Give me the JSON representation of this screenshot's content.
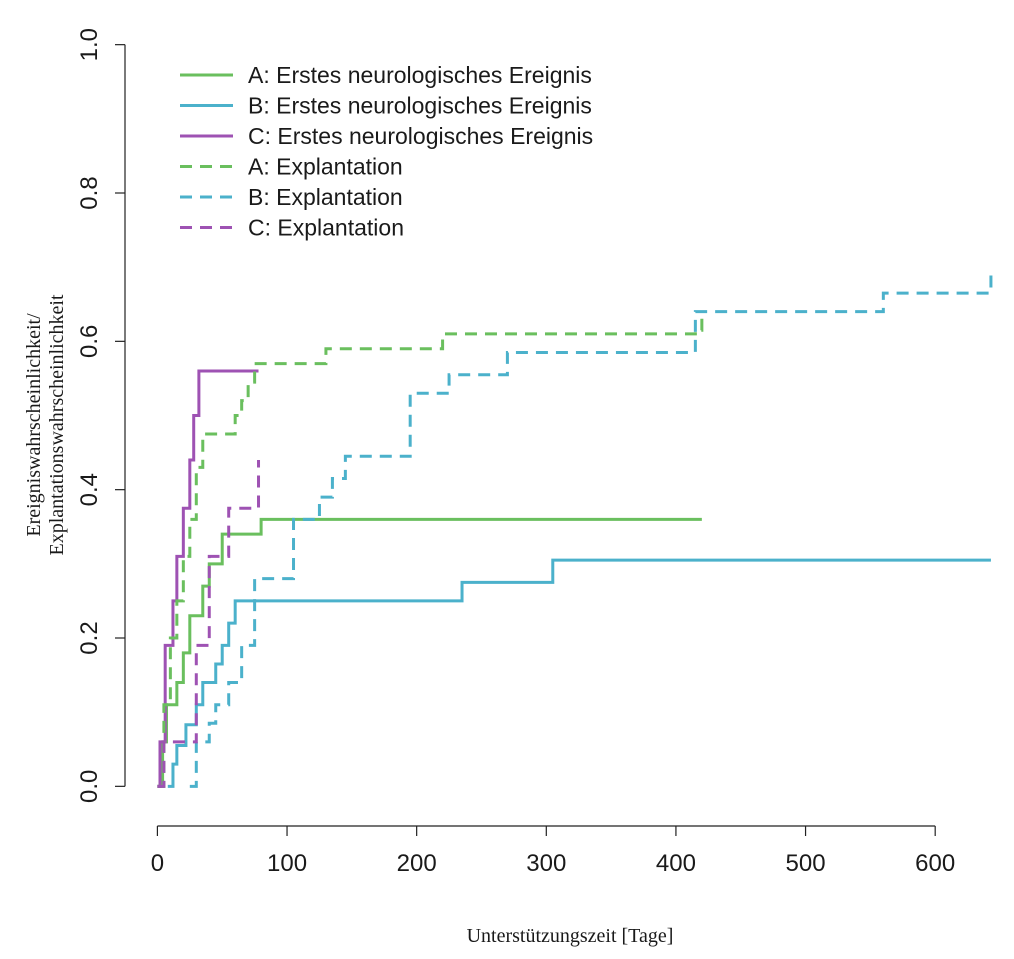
{
  "chart_data": {
    "type": "line",
    "xlabel": "Unterstützungszeit [Tage]",
    "ylabel_lines": [
      "Ereigniswahrscheinlichkeit/",
      "Explantationswahrscheinlichkeit"
    ],
    "xlim": [
      -25,
      650
    ],
    "ylim": [
      -0.04,
      1.04
    ],
    "x_ticks": [
      0,
      100,
      200,
      300,
      400,
      500,
      600
    ],
    "x_tick_labels": [
      "0",
      "100",
      "200",
      "300",
      "400",
      "500",
      "600"
    ],
    "y_ticks": [
      0.0,
      0.2,
      0.4,
      0.6,
      0.8,
      1.0
    ],
    "y_tick_labels": [
      "0.0",
      "0.2",
      "0.4",
      "0.6",
      "0.8",
      "1.0"
    ],
    "grid": false,
    "legend_position": "top-left",
    "step": true,
    "series": [
      {
        "name": "A: Erstes neurologisches Ereignis",
        "color": "#6abf5e",
        "dash": "solid",
        "x": [
          0,
          4,
          7,
          15,
          20,
          25,
          35,
          40,
          50,
          55,
          65,
          80,
          420
        ],
        "y": [
          0,
          0.06,
          0.11,
          0.14,
          0.18,
          0.23,
          0.27,
          0.3,
          0.34,
          0.34,
          0.34,
          0.36,
          0.36
        ]
      },
      {
        "name": "B: Erstes neurologisches Ereignis",
        "color": "#4bb1cb",
        "dash": "solid",
        "x": [
          8,
          12,
          15,
          22,
          30,
          35,
          45,
          50,
          55,
          60,
          70,
          235,
          305,
          643
        ],
        "y": [
          0,
          0.03,
          0.055,
          0.083,
          0.11,
          0.14,
          0.165,
          0.19,
          0.22,
          0.25,
          0.25,
          0.275,
          0.305,
          0.305
        ]
      },
      {
        "name": "C: Erstes neurologisches Ereignis",
        "color": "#9e52b3",
        "dash": "solid",
        "x": [
          0,
          2,
          6,
          12,
          15,
          20,
          25,
          28,
          32,
          78
        ],
        "y": [
          0,
          0.06,
          0.19,
          0.25,
          0.31,
          0.375,
          0.44,
          0.5,
          0.56,
          0.56
        ]
      },
      {
        "name": "A: Explantation",
        "color": "#6abf5e",
        "dash": "dashed",
        "x": [
          0,
          5,
          10,
          15,
          20,
          25,
          30,
          35,
          60,
          65,
          70,
          75,
          80,
          100,
          130,
          220,
          415,
          420
        ],
        "y": [
          0,
          0.11,
          0.2,
          0.25,
          0.31,
          0.36,
          0.43,
          0.475,
          0.5,
          0.52,
          0.545,
          0.57,
          0.57,
          0.57,
          0.59,
          0.61,
          0.615,
          0.64
        ]
      },
      {
        "name": "B: Explantation",
        "color": "#4bb1cb",
        "dash": "dashed",
        "x": [
          25,
          30,
          40,
          45,
          55,
          65,
          75,
          100,
          105,
          125,
          135,
          145,
          195,
          200,
          225,
          270,
          415,
          420,
          560,
          643
        ],
        "y": [
          0,
          0.06,
          0.085,
          0.11,
          0.14,
          0.19,
          0.28,
          0.28,
          0.36,
          0.39,
          0.415,
          0.445,
          0.53,
          0.53,
          0.555,
          0.585,
          0.64,
          0.64,
          0.665,
          0.69
        ]
      },
      {
        "name": "C: Explantation",
        "color": "#9e52b3",
        "dash": "dashed",
        "x": [
          0,
          5,
          25,
          30,
          35,
          40,
          45,
          55,
          60,
          78
        ],
        "y": [
          0,
          0.06,
          0.06,
          0.19,
          0.19,
          0.31,
          0.31,
          0.375,
          0.375,
          0.44
        ]
      }
    ]
  }
}
